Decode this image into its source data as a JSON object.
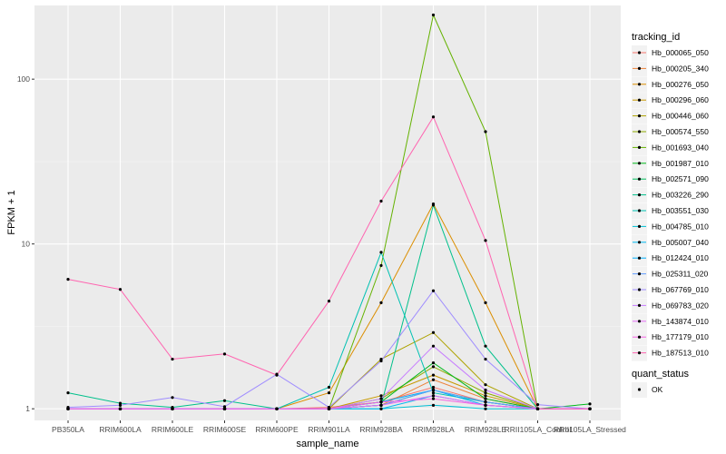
{
  "chart_data": {
    "type": "line",
    "xlabel": "sample_name",
    "ylabel": "FPKM + 1",
    "y_scale": "log10",
    "ylim": [
      0.85,
      280
    ],
    "y_ticks": [
      {
        "value": 1,
        "label": "1"
      },
      {
        "value": 10,
        "label": "10"
      },
      {
        "value": 100,
        "label": "100"
      }
    ],
    "grid": true,
    "legend_position": "right",
    "categories": [
      "PB350LA",
      "RRIM600LA",
      "RRIM600LE",
      "RRIM600SE",
      "RRIM600PE",
      "RRIM901LA",
      "RRIM928BA",
      "RRIM928LA",
      "RRIM928LE",
      "RRII105LA_Control",
      "RRII105LA_Stressed"
    ],
    "legend_title": "tracking_id",
    "series": [
      {
        "name": "Hb_000065_050",
        "color": "#F8766D",
        "values": [
          1,
          1,
          1,
          1,
          1,
          1.02,
          1.1,
          1.35,
          1.1,
          1,
          1
        ]
      },
      {
        "name": "Hb_000205_340",
        "color": "#EC8239",
        "values": [
          1,
          1,
          1,
          1,
          1,
          1,
          1.05,
          1.5,
          1.15,
          1,
          1
        ]
      },
      {
        "name": "Hb_000276_050",
        "color": "#DB8E00",
        "values": [
          1,
          1,
          1,
          1,
          1,
          1.25,
          4.4,
          17.5,
          4.4,
          1,
          1
        ]
      },
      {
        "name": "Hb_000296_060",
        "color": "#C79800",
        "values": [
          1,
          1,
          1,
          1,
          1,
          1,
          1.2,
          1.6,
          1.2,
          1,
          1
        ]
      },
      {
        "name": "Hb_000446_060",
        "color": "#AEA200",
        "values": [
          1,
          1,
          1,
          1,
          1,
          1,
          2.0,
          2.9,
          1.4,
          1,
          1
        ]
      },
      {
        "name": "Hb_000574_550",
        "color": "#8FAA00",
        "values": [
          1,
          1,
          1,
          1,
          1,
          1,
          1.15,
          1.8,
          1.25,
          1,
          1
        ]
      },
      {
        "name": "Hb_001693_040",
        "color": "#64B200",
        "values": [
          1,
          1,
          1,
          1,
          1,
          1,
          7.4,
          245,
          48,
          1,
          1
        ]
      },
      {
        "name": "Hb_001987_010",
        "color": "#00B81B",
        "values": [
          1,
          1,
          1,
          1,
          1,
          1,
          1.1,
          1.9,
          1.15,
          1,
          1.07
        ]
      },
      {
        "name": "Hb_002571_090",
        "color": "#00BD5C",
        "values": [
          1,
          1,
          1,
          1,
          1,
          1,
          1.05,
          1.3,
          1.1,
          1,
          1
        ]
      },
      {
        "name": "Hb_003226_290",
        "color": "#00C08B",
        "values": [
          1.25,
          1.08,
          1.02,
          1.12,
          1,
          1,
          1.05,
          17.2,
          2.4,
          1,
          1
        ]
      },
      {
        "name": "Hb_003551_030",
        "color": "#00C1B2",
        "values": [
          1,
          1,
          1,
          1,
          1,
          1.35,
          8.9,
          1.25,
          1.1,
          1,
          1
        ]
      },
      {
        "name": "Hb_004785_010",
        "color": "#00BFD4",
        "values": [
          1,
          1,
          1,
          1,
          1,
          1,
          1,
          1.05,
          1,
          1,
          1
        ]
      },
      {
        "name": "Hb_005007_040",
        "color": "#00B8F0",
        "values": [
          1,
          1,
          1,
          1,
          1,
          1,
          1,
          1.2,
          1.05,
          1,
          1
        ]
      },
      {
        "name": "Hb_012424_010",
        "color": "#00ADFA",
        "values": [
          1,
          1,
          1,
          1,
          1,
          1,
          1.1,
          1.3,
          1.05,
          1,
          1
        ]
      },
      {
        "name": "Hb_025311_020",
        "color": "#619CFF",
        "values": [
          1,
          1,
          1,
          1,
          1,
          1,
          1.05,
          1.3,
          1.1,
          1,
          1
        ]
      },
      {
        "name": "Hb_067769_010",
        "color": "#9F8CFF",
        "values": [
          1.02,
          1.05,
          1.17,
          1.03,
          1.62,
          1.02,
          1.95,
          5.2,
          2.0,
          1.06,
          1
        ]
      },
      {
        "name": "Hb_069783_020",
        "color": "#C77CFF",
        "values": [
          1,
          1,
          1,
          1,
          1,
          1,
          1.15,
          2.4,
          1.3,
          1,
          1
        ]
      },
      {
        "name": "Hb_143874_010",
        "color": "#E36EF6",
        "values": [
          1,
          1,
          1,
          1,
          1,
          1,
          1.05,
          1.2,
          1.05,
          1,
          1
        ]
      },
      {
        "name": "Hb_177179_010",
        "color": "#F564E3",
        "values": [
          1,
          1,
          1,
          1,
          1,
          1,
          1.1,
          1.15,
          1.05,
          1,
          1
        ]
      },
      {
        "name": "Hb_187513_010",
        "color": "#FF64B0",
        "values": [
          6.1,
          5.3,
          2.0,
          2.15,
          1.6,
          4.5,
          18.2,
          59,
          10.5,
          1,
          1
        ]
      }
    ],
    "extra_legend": {
      "title": "quant_status",
      "entries": [
        {
          "label": "OK"
        }
      ]
    },
    "colors": {
      "panel_bg": "#EBEBEB",
      "grid_major": "#FFFFFF",
      "point": "#000000"
    }
  }
}
